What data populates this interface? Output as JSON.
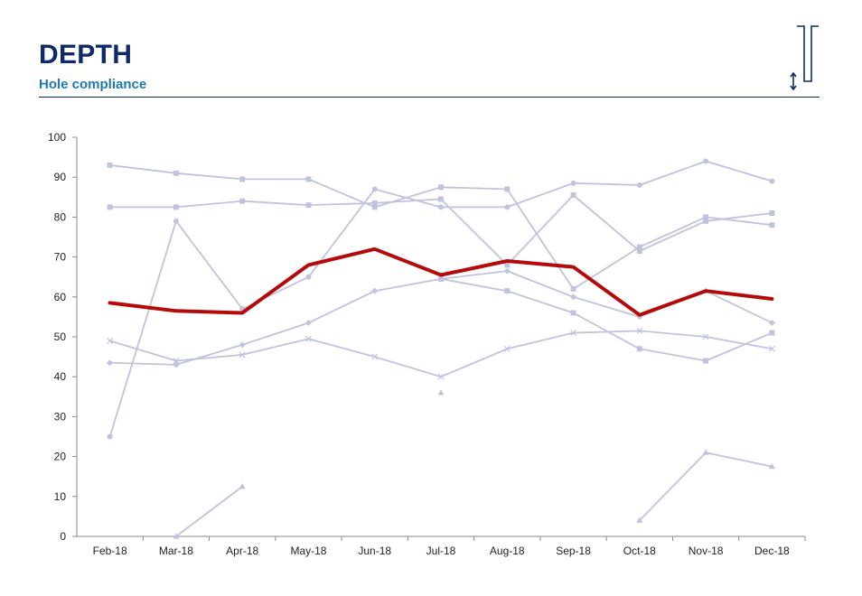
{
  "header": {
    "title": "DEPTH",
    "subtitle": "Hole compliance",
    "logo_icon": "depth-hole-icon"
  },
  "colors": {
    "highlight": "#b50a0a",
    "series": "#bfc3dd",
    "title": "#0f2a6b",
    "subtitle": "#1f78b4"
  },
  "chart_data": {
    "type": "line",
    "title": "",
    "xlabel": "",
    "ylabel": "",
    "ylim": [
      0,
      100
    ],
    "yticks": [
      0,
      10,
      20,
      30,
      40,
      50,
      60,
      70,
      80,
      90,
      100
    ],
    "categories": [
      "Feb-18",
      "Mar-18",
      "Apr-18",
      "May-18",
      "Jun-18",
      "Jul-18",
      "Aug-18",
      "Sep-18",
      "Oct-18",
      "Nov-18",
      "Dec-18"
    ],
    "grid": false,
    "legend": "none",
    "series": [
      {
        "marker": "circle",
        "highlight": false,
        "values": [
          25,
          79,
          57,
          65,
          87,
          82.5,
          82.5,
          88.5,
          88,
          94,
          89
        ]
      },
      {
        "marker": "square",
        "highlight": false,
        "values": [
          93,
          91,
          89.5,
          89.5,
          82.5,
          87.5,
          87,
          62,
          72.5,
          80,
          78
        ]
      },
      {
        "marker": "square",
        "highlight": false,
        "values": [
          82.5,
          82.5,
          84,
          83,
          83.5,
          84.5,
          68,
          85.5,
          71.5,
          79,
          81
        ]
      },
      {
        "marker": "diamond",
        "highlight": false,
        "values": [
          43.5,
          43,
          48,
          53.5,
          61.5,
          64.5,
          66.5,
          60,
          55,
          61.5,
          53.5
        ]
      },
      {
        "marker": "square",
        "highlight": false,
        "values": [
          null,
          null,
          null,
          null,
          null,
          64.5,
          61.5,
          56,
          47,
          44,
          51
        ]
      },
      {
        "marker": "x",
        "highlight": false,
        "values": [
          49,
          44,
          45.5,
          49.5,
          45,
          40,
          47,
          51,
          51.5,
          50,
          47
        ]
      },
      {
        "marker": "triangle",
        "highlight": false,
        "values": [
          null,
          0,
          12.5,
          null,
          null,
          36,
          null,
          null,
          4,
          21,
          17.5
        ]
      },
      {
        "marker": "none",
        "highlight": true,
        "values": [
          58.5,
          56.5,
          56,
          68,
          72,
          65.5,
          69,
          67.5,
          55.5,
          61.5,
          59.5
        ]
      }
    ]
  }
}
